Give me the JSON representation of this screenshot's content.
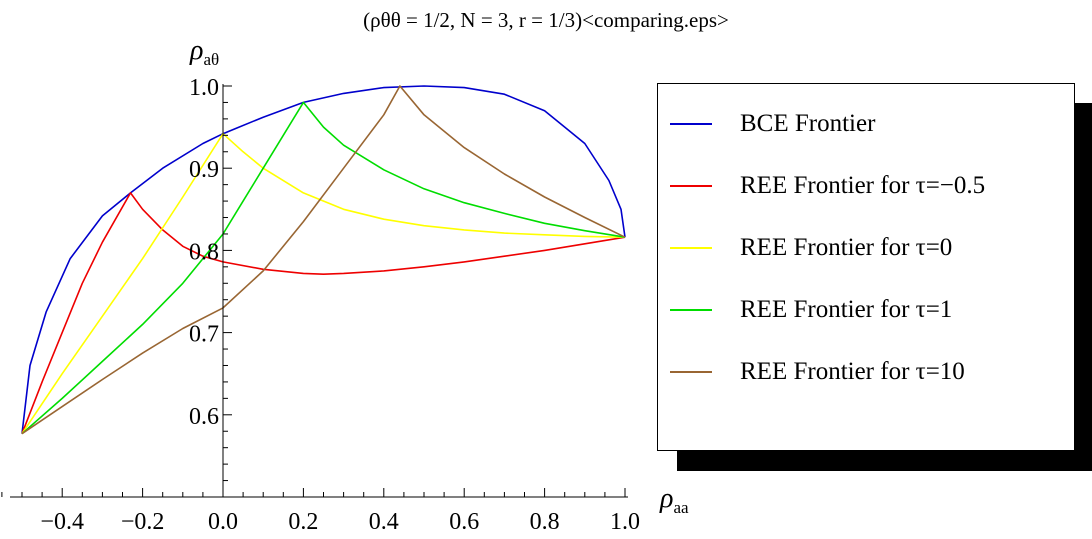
{
  "caption": "(ρθθ = 1/2, N = 3, r = 1/3)<comparing.eps>",
  "chart_data": {
    "type": "line",
    "title": "(ρθθ = 1/2, N = 3, r = 1/3)<comparing.eps>",
    "xlabel": {
      "symbol": "ρ",
      "subscript": "aa"
    },
    "ylabel": {
      "symbol": "ρ",
      "subscript": "aθ"
    },
    "xlim": [
      -0.5,
      1.0
    ],
    "ylim": [
      0.5,
      1.0
    ],
    "x_axis_crosses_y_at": 0.5,
    "y_axis_crosses_x_at": 0.0,
    "x_ticks": [
      -0.4,
      -0.2,
      0.0,
      0.2,
      0.4,
      0.6,
      0.8,
      1.0
    ],
    "x_tick_labels": [
      "−0.4",
      "−0.2",
      "0.0",
      "0.2",
      "0.4",
      "0.6",
      "0.8",
      "1.0"
    ],
    "y_ticks": [
      0.6,
      0.7,
      0.8,
      0.9,
      1.0
    ],
    "y_tick_labels": [
      "0.6",
      "0.7",
      "0.8",
      "0.9",
      "1.0"
    ],
    "grid": false,
    "legend_position": "right",
    "series": [
      {
        "name": "BCE Frontier",
        "color": "#0000cc",
        "points": [
          [
            -0.5,
            0.577
          ],
          [
            -0.48,
            0.66
          ],
          [
            -0.44,
            0.725
          ],
          [
            -0.38,
            0.79
          ],
          [
            -0.3,
            0.842
          ],
          [
            -0.23,
            0.87
          ],
          [
            -0.15,
            0.9
          ],
          [
            -0.05,
            0.93
          ],
          [
            0.0,
            0.942
          ],
          [
            0.1,
            0.962
          ],
          [
            0.2,
            0.98
          ],
          [
            0.3,
            0.991
          ],
          [
            0.4,
            0.998
          ],
          [
            0.5,
            1.0
          ],
          [
            0.6,
            0.998
          ],
          [
            0.7,
            0.99
          ],
          [
            0.8,
            0.97
          ],
          [
            0.9,
            0.93
          ],
          [
            0.96,
            0.885
          ],
          [
            0.99,
            0.85
          ],
          [
            1.0,
            0.816
          ]
        ]
      },
      {
        "name": "REE Frontier for τ=−0.5",
        "color": "#ee0000",
        "points": [
          [
            -0.5,
            0.577
          ],
          [
            -0.45,
            0.64
          ],
          [
            -0.4,
            0.7
          ],
          [
            -0.35,
            0.76
          ],
          [
            -0.3,
            0.81
          ],
          [
            -0.23,
            0.87
          ],
          [
            -0.2,
            0.85
          ],
          [
            -0.15,
            0.825
          ],
          [
            -0.1,
            0.805
          ],
          [
            -0.05,
            0.793
          ],
          [
            0.0,
            0.786
          ],
          [
            0.1,
            0.777
          ],
          [
            0.2,
            0.772
          ],
          [
            0.25,
            0.771
          ],
          [
            0.3,
            0.772
          ],
          [
            0.4,
            0.775
          ],
          [
            0.5,
            0.78
          ],
          [
            0.6,
            0.786
          ],
          [
            0.7,
            0.793
          ],
          [
            0.8,
            0.8
          ],
          [
            0.9,
            0.808
          ],
          [
            1.0,
            0.816
          ]
        ]
      },
      {
        "name": "REE Frontier for τ=0",
        "color": "#ffff00",
        "points": [
          [
            -0.5,
            0.577
          ],
          [
            -0.4,
            0.65
          ],
          [
            -0.3,
            0.72
          ],
          [
            -0.2,
            0.79
          ],
          [
            -0.1,
            0.865
          ],
          [
            0.0,
            0.942
          ],
          [
            0.05,
            0.92
          ],
          [
            0.1,
            0.9
          ],
          [
            0.2,
            0.87
          ],
          [
            0.3,
            0.85
          ],
          [
            0.4,
            0.838
          ],
          [
            0.5,
            0.83
          ],
          [
            0.6,
            0.825
          ],
          [
            0.7,
            0.821
          ],
          [
            0.8,
            0.819
          ],
          [
            0.9,
            0.817
          ],
          [
            1.0,
            0.816
          ]
        ]
      },
      {
        "name": "REE Frontier for τ=1",
        "color": "#00dd00",
        "points": [
          [
            -0.5,
            0.577
          ],
          [
            -0.4,
            0.62
          ],
          [
            -0.3,
            0.665
          ],
          [
            -0.2,
            0.71
          ],
          [
            -0.1,
            0.76
          ],
          [
            0.0,
            0.82
          ],
          [
            0.05,
            0.86
          ],
          [
            0.1,
            0.9
          ],
          [
            0.15,
            0.94
          ],
          [
            0.2,
            0.98
          ],
          [
            0.25,
            0.95
          ],
          [
            0.3,
            0.928
          ],
          [
            0.4,
            0.898
          ],
          [
            0.5,
            0.875
          ],
          [
            0.6,
            0.858
          ],
          [
            0.7,
            0.845
          ],
          [
            0.8,
            0.833
          ],
          [
            0.9,
            0.824
          ],
          [
            1.0,
            0.816
          ]
        ]
      },
      {
        "name": "REE Frontier for τ=10",
        "color": "#996633",
        "points": [
          [
            -0.5,
            0.577
          ],
          [
            -0.4,
            0.61
          ],
          [
            -0.3,
            0.643
          ],
          [
            -0.2,
            0.675
          ],
          [
            -0.1,
            0.705
          ],
          [
            0.0,
            0.73
          ],
          [
            0.1,
            0.775
          ],
          [
            0.2,
            0.835
          ],
          [
            0.3,
            0.9
          ],
          [
            0.4,
            0.965
          ],
          [
            0.44,
            1.0
          ],
          [
            0.5,
            0.965
          ],
          [
            0.6,
            0.925
          ],
          [
            0.7,
            0.893
          ],
          [
            0.8,
            0.865
          ],
          [
            0.9,
            0.84
          ],
          [
            1.0,
            0.816
          ]
        ]
      }
    ]
  }
}
